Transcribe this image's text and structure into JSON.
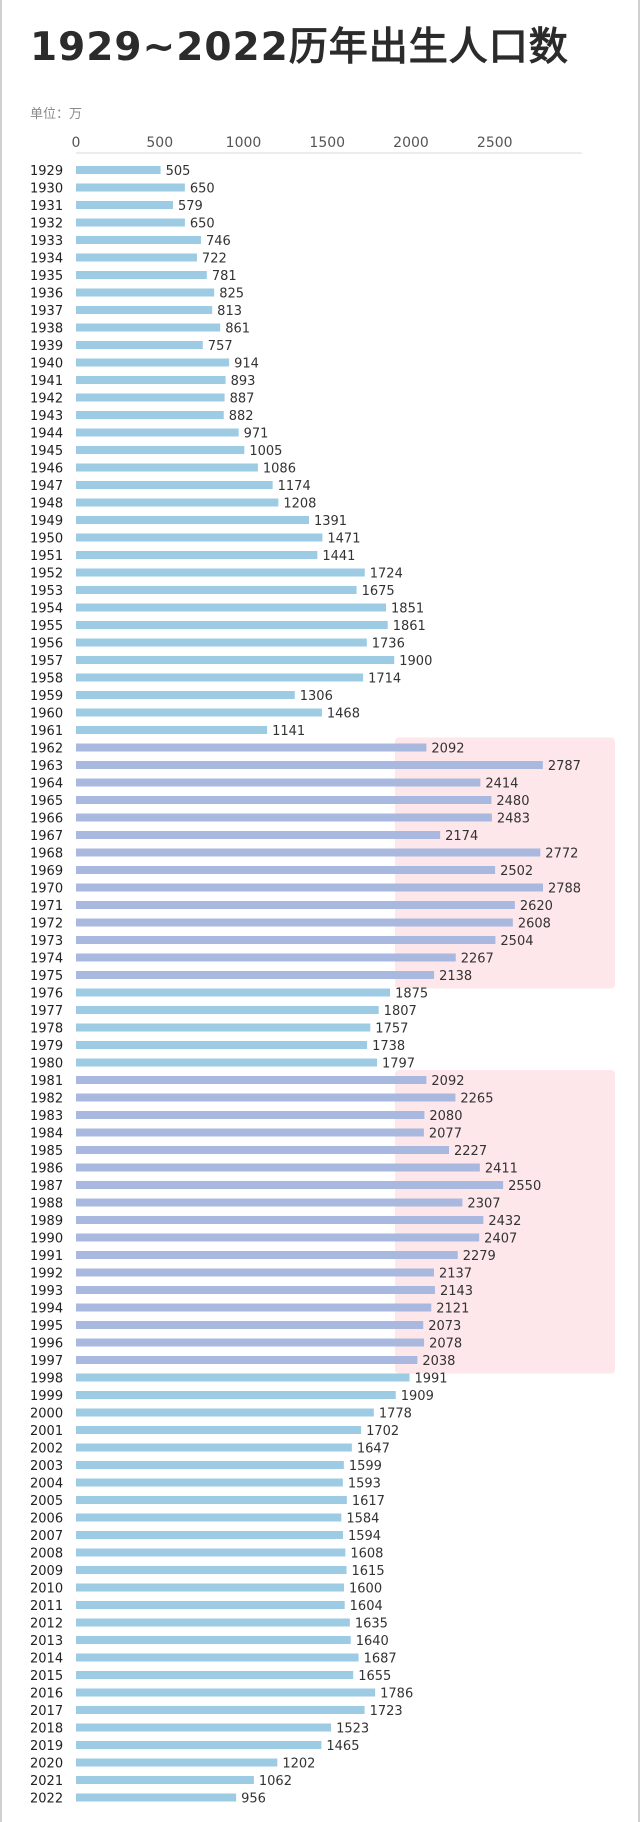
{
  "title": "1929~2022历年出生人口数",
  "unit_label": "单位：万",
  "chart_data": {
    "type": "bar",
    "orientation": "horizontal",
    "title": "1929~2022历年出生人口数",
    "unit": "万",
    "xlim": [
      0,
      2900
    ],
    "x_ticks": [
      0,
      500,
      1000,
      1500,
      2000,
      2500
    ],
    "grid": false,
    "bar_color": "#9ccbe3",
    "bar_color_highlight": "#a9b8de",
    "highlight_bands_color": "#fde7ea",
    "highlight_ranges": [
      [
        1962,
        1975
      ],
      [
        1981,
        1997
      ]
    ],
    "categories": [
      "1929",
      "1930",
      "1931",
      "1932",
      "1933",
      "1934",
      "1935",
      "1936",
      "1937",
      "1938",
      "1939",
      "1940",
      "1941",
      "1942",
      "1943",
      "1944",
      "1945",
      "1946",
      "1947",
      "1948",
      "1949",
      "1950",
      "1951",
      "1952",
      "1953",
      "1954",
      "1955",
      "1956",
      "1957",
      "1958",
      "1959",
      "1960",
      "1961",
      "1962",
      "1963",
      "1964",
      "1965",
      "1966",
      "1967",
      "1968",
      "1969",
      "1970",
      "1971",
      "1972",
      "1973",
      "1974",
      "1975",
      "1976",
      "1977",
      "1978",
      "1979",
      "1980",
      "1981",
      "1982",
      "1983",
      "1984",
      "1985",
      "1986",
      "1987",
      "1988",
      "1989",
      "1990",
      "1991",
      "1992",
      "1993",
      "1994",
      "1995",
      "1996",
      "1997",
      "1998",
      "1999",
      "2000",
      "2001",
      "2002",
      "2003",
      "2004",
      "2005",
      "2006",
      "2007",
      "2008",
      "2009",
      "2010",
      "2011",
      "2012",
      "2013",
      "2014",
      "2015",
      "2016",
      "2017",
      "2018",
      "2019",
      "2020",
      "2021",
      "2022"
    ],
    "values": [
      505,
      650,
      579,
      650,
      746,
      722,
      781,
      825,
      813,
      861,
      757,
      914,
      893,
      887,
      882,
      971,
      1005,
      1086,
      1174,
      1208,
      1391,
      1471,
      1441,
      1724,
      1675,
      1851,
      1861,
      1736,
      1900,
      1714,
      1306,
      1468,
      1141,
      2092,
      2787,
      2414,
      2480,
      2483,
      2174,
      2772,
      2502,
      2788,
      2620,
      2608,
      2504,
      2267,
      2138,
      1875,
      1807,
      1757,
      1738,
      1797,
      2092,
      2265,
      2080,
      2077,
      2227,
      2411,
      2550,
      2307,
      2432,
      2407,
      2279,
      2137,
      2143,
      2121,
      2073,
      2078,
      2038,
      1991,
      1909,
      1778,
      1702,
      1647,
      1599,
      1593,
      1617,
      1584,
      1594,
      1608,
      1615,
      1600,
      1604,
      1635,
      1640,
      1687,
      1655,
      1786,
      1723,
      1523,
      1465,
      1202,
      1062,
      956
    ]
  }
}
